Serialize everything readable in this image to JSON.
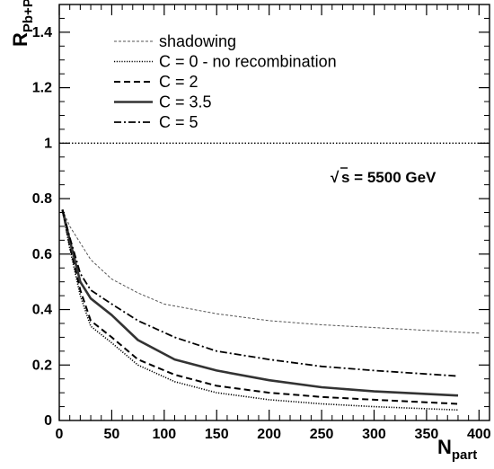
{
  "chart_data": {
    "type": "line",
    "xlabel": "N",
    "xlabel_sub": "part",
    "ylabel": "R",
    "ylabel_sub": "Pb+Pb",
    "xlim": [
      0,
      410
    ],
    "ylim": [
      0,
      1.5
    ],
    "x_ticks": [
      0,
      50,
      100,
      150,
      200,
      250,
      300,
      350,
      400
    ],
    "y_ticks": [
      0.2,
      0.4,
      0.6,
      0.8,
      1,
      1.2,
      1.4
    ],
    "y_tick_labels": [
      "0.2",
      "0.4",
      "0.6",
      "0.8",
      "1",
      "1.2",
      "1.4"
    ],
    "annotation": {
      "root_symbol": "√",
      "text": "s = 5500 GeV"
    },
    "reference_line": {
      "y": 1.0,
      "style": "dotted"
    },
    "legend_position": "top-left",
    "series": [
      {
        "name": "shadowing",
        "style": "dashed-thin",
        "color": "#555555",
        "x": [
          3,
          10,
          20,
          30,
          50,
          75,
          100,
          150,
          200,
          250,
          300,
          350,
          400
        ],
        "y": [
          0.76,
          0.7,
          0.64,
          0.58,
          0.51,
          0.46,
          0.42,
          0.385,
          0.36,
          0.345,
          0.335,
          0.325,
          0.315
        ]
      },
      {
        "name": "C = 0 - no recombination",
        "style": "dotted",
        "color": "#000000",
        "x": [
          3,
          10,
          20,
          30,
          50,
          75,
          110,
          150,
          200,
          250,
          300,
          380
        ],
        "y": [
          0.76,
          0.62,
          0.45,
          0.34,
          0.28,
          0.2,
          0.14,
          0.1,
          0.075,
          0.06,
          0.05,
          0.038
        ]
      },
      {
        "name": "C = 2",
        "style": "dashed",
        "color": "#000000",
        "x": [
          3,
          10,
          20,
          30,
          50,
          75,
          110,
          150,
          200,
          250,
          300,
          380
        ],
        "y": [
          0.76,
          0.63,
          0.47,
          0.36,
          0.3,
          0.22,
          0.165,
          0.125,
          0.1,
          0.085,
          0.075,
          0.06
        ]
      },
      {
        "name": "C = 3.5",
        "style": "solid-thick",
        "color": "#333333",
        "x": [
          3,
          10,
          20,
          30,
          50,
          75,
          110,
          150,
          200,
          250,
          300,
          380
        ],
        "y": [
          0.76,
          0.65,
          0.5,
          0.44,
          0.38,
          0.29,
          0.22,
          0.18,
          0.145,
          0.12,
          0.105,
          0.09
        ]
      },
      {
        "name": "C = 5",
        "style": "dash-dot",
        "color": "#000000",
        "x": [
          3,
          10,
          20,
          30,
          50,
          75,
          110,
          150,
          200,
          250,
          300,
          380
        ],
        "y": [
          0.76,
          0.66,
          0.53,
          0.47,
          0.42,
          0.36,
          0.3,
          0.25,
          0.22,
          0.195,
          0.18,
          0.16
        ]
      }
    ]
  }
}
